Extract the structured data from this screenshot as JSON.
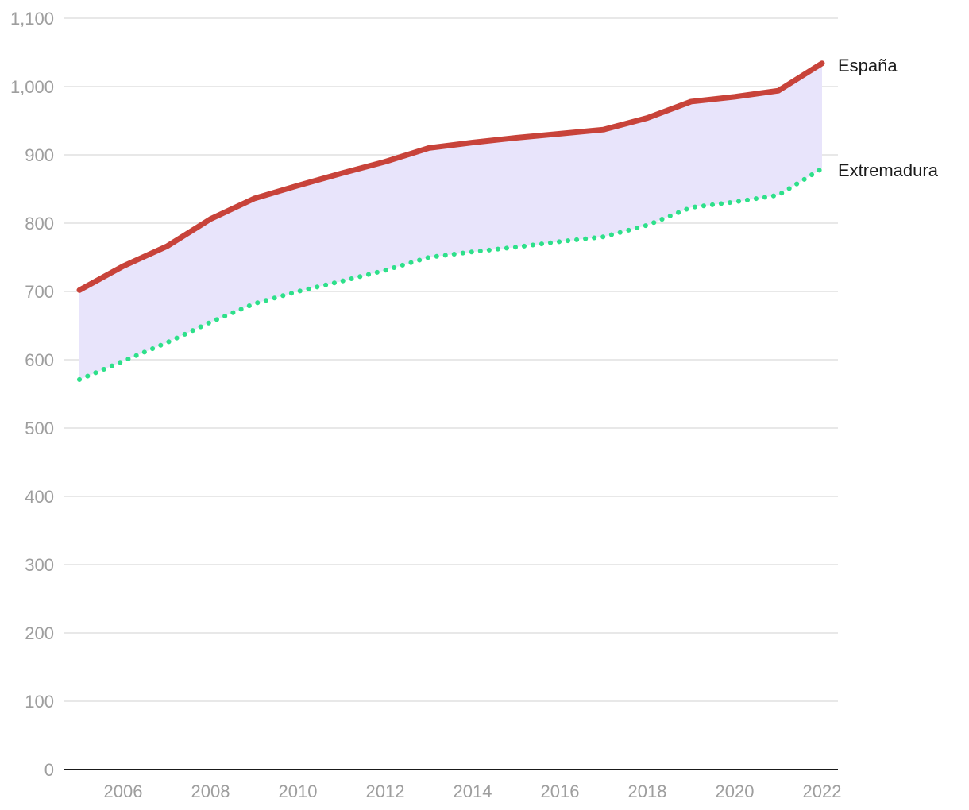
{
  "chart_data": {
    "type": "line",
    "title": "",
    "xlabel": "",
    "ylabel": "",
    "x": [
      2005,
      2006,
      2007,
      2008,
      2009,
      2010,
      2011,
      2012,
      2013,
      2014,
      2015,
      2016,
      2017,
      2018,
      2019,
      2020,
      2021,
      2022
    ],
    "x_ticks": [
      2006,
      2008,
      2010,
      2012,
      2014,
      2016,
      2018,
      2020,
      2022
    ],
    "x_tick_labels": [
      "2006",
      "2008",
      "2010",
      "2012",
      "2014",
      "2016",
      "2018",
      "2020",
      "2022"
    ],
    "xlim": [
      2005,
      2022
    ],
    "y_ticks": [
      0,
      100,
      200,
      300,
      400,
      500,
      600,
      700,
      800,
      900,
      1000,
      1100
    ],
    "y_tick_labels": [
      "0",
      "100",
      "200",
      "300",
      "400",
      "500",
      "600",
      "700",
      "800",
      "900",
      "1,000",
      "1,100"
    ],
    "ylim": [
      0,
      1100
    ],
    "grid": true,
    "fill_between_series": true,
    "fill_color": "#e8e4fb",
    "series": [
      {
        "name": "España",
        "label": "España",
        "color": "#c8433a",
        "style": "solid",
        "values": [
          702,
          737,
          766,
          806,
          836,
          855,
          873,
          890,
          910,
          918,
          925,
          931,
          937,
          954,
          978,
          985,
          994,
          1034
        ]
      },
      {
        "name": "Extremadura",
        "label": "Extremadura",
        "color": "#2ee08a",
        "style": "dotted",
        "values": [
          571,
          598,
          625,
          655,
          682,
          700,
          715,
          731,
          750,
          758,
          765,
          773,
          780,
          797,
          823,
          831,
          841,
          880
        ]
      }
    ]
  }
}
